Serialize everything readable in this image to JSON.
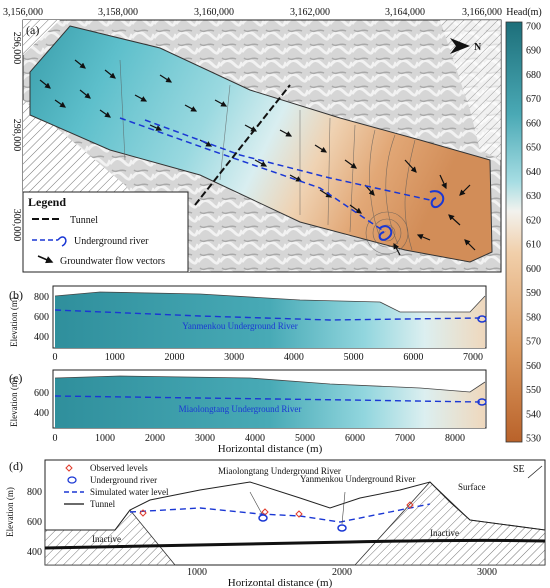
{
  "panel_a": {
    "label": "(a)",
    "x_ticks": [
      "3,156,000",
      "3,158,000",
      "3,160,000",
      "3,162,000",
      "3,164,000",
      "3,166,000"
    ],
    "y_ticks": [
      "296,000",
      "298,000",
      "300,000"
    ],
    "north_label": "N",
    "legend": {
      "title": "Legend",
      "items": [
        "Tunnel",
        "Underground river",
        "Groundwater flow vectors"
      ]
    }
  },
  "colorbar": {
    "title": "Head(m)",
    "ticks": [
      700,
      690,
      680,
      670,
      660,
      650,
      640,
      630,
      620,
      610,
      600,
      590,
      580,
      570,
      560,
      550,
      540,
      530
    ],
    "colors": {
      "high": "#1d6f7a",
      "mid_high": "#5fb8c4",
      "mid": "#c6ecef",
      "mid_low": "#f0c99e",
      "low": "#b9622a"
    }
  },
  "panel_b": {
    "label": "(b)",
    "ylabel": "Elevation (m)",
    "y_ticks": [
      800,
      600,
      400
    ],
    "x_ticks": [
      0,
      1000,
      2000,
      3000,
      4000,
      5000,
      6000,
      7000
    ],
    "river_label": "Yanmenkou Underground River"
  },
  "panel_c": {
    "label": "(c)",
    "ylabel": "Elevation (m)",
    "y_ticks": [
      600,
      400
    ],
    "x_ticks": [
      0,
      1000,
      2000,
      3000,
      4000,
      5000,
      6000,
      7000,
      8000
    ],
    "river_label": "Miaolongtang Underground River",
    "xlabel": "Horizontal distance (m)"
  },
  "panel_d": {
    "label": "(d)",
    "ylabel": "Elevation (m)",
    "y_ticks": [
      800,
      600,
      400
    ],
    "x_ticks": [
      1000,
      2000,
      3000
    ],
    "xlabel": "Horizontal distance (m)",
    "legend": [
      "Observed levels",
      "Underground river",
      "Simulated water level",
      "Tunnel"
    ],
    "annotations": {
      "miao": "Miaolongtang Underground River",
      "yan": "Yanmenkou Underground River",
      "surface": "Surface",
      "inactive_left": "Inactive",
      "inactive_right": "Inactive",
      "direction": "SE"
    }
  }
}
